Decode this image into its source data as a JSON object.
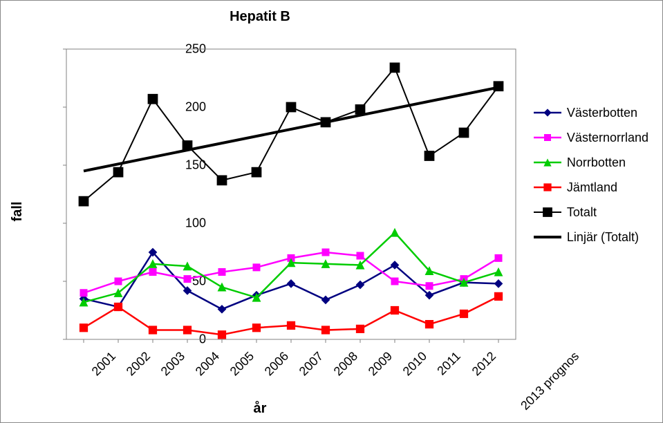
{
  "chart": {
    "type": "line",
    "title": "Hepatit B",
    "title_fontsize": 20,
    "ylabel": "fall",
    "xlabel": "år",
    "label_fontsize": 20,
    "background_color": "#ffffff",
    "plot_border_color": "#808080",
    "tick_color": "#808080",
    "xlim_index": [
      0,
      12
    ],
    "ylim": [
      0,
      250
    ],
    "ytick_step": 50,
    "yticks": [
      0,
      50,
      100,
      150,
      200,
      250
    ],
    "categories": [
      "2001",
      "2002",
      "2003",
      "2004",
      "2005",
      "2006",
      "2007",
      "2008",
      "2009",
      "2010",
      "2011",
      "2012",
      "2013 prognos"
    ],
    "xtick_rotation": -45,
    "series": [
      {
        "name": "Västerbotten",
        "color": "#000080",
        "marker": "diamond",
        "marker_size": 9,
        "line_width": 2.5,
        "values": [
          35,
          28,
          75,
          42,
          26,
          38,
          48,
          34,
          47,
          64,
          38,
          49,
          48
        ]
      },
      {
        "name": "Västernorrland",
        "color": "#ff00ff",
        "marker": "square",
        "marker_size": 8,
        "line_width": 2.5,
        "values": [
          40,
          50,
          58,
          52,
          58,
          62,
          70,
          75,
          72,
          50,
          46,
          52,
          70
        ]
      },
      {
        "name": "Norrbotten",
        "color": "#00cc00",
        "marker": "triangle",
        "marker_size": 9,
        "line_width": 2.5,
        "values": [
          32,
          40,
          65,
          63,
          45,
          36,
          66,
          65,
          64,
          92,
          59,
          49,
          58
        ]
      },
      {
        "name": "Jämtland",
        "color": "#ff0000",
        "marker": "square",
        "marker_size": 9,
        "line_width": 2.5,
        "values": [
          10,
          28,
          8,
          8,
          4,
          10,
          12,
          8,
          9,
          25,
          13,
          22,
          37
        ]
      },
      {
        "name": "Totalt",
        "color": "#000000",
        "marker": "square",
        "marker_size": 11,
        "line_width": 2.0,
        "values": [
          119,
          144,
          207,
          167,
          137,
          144,
          200,
          187,
          198,
          234,
          158,
          178,
          218
        ]
      },
      {
        "name": "Linjär (Totalt)",
        "color": "#000000",
        "marker": "none",
        "marker_size": 0,
        "line_width": 4.0,
        "is_trend": true,
        "values": [
          145,
          151,
          157,
          163,
          169,
          175,
          181,
          187,
          193,
          199,
          205,
          211,
          217
        ]
      }
    ],
    "legend": {
      "position": "right",
      "fontsize": 18
    }
  }
}
